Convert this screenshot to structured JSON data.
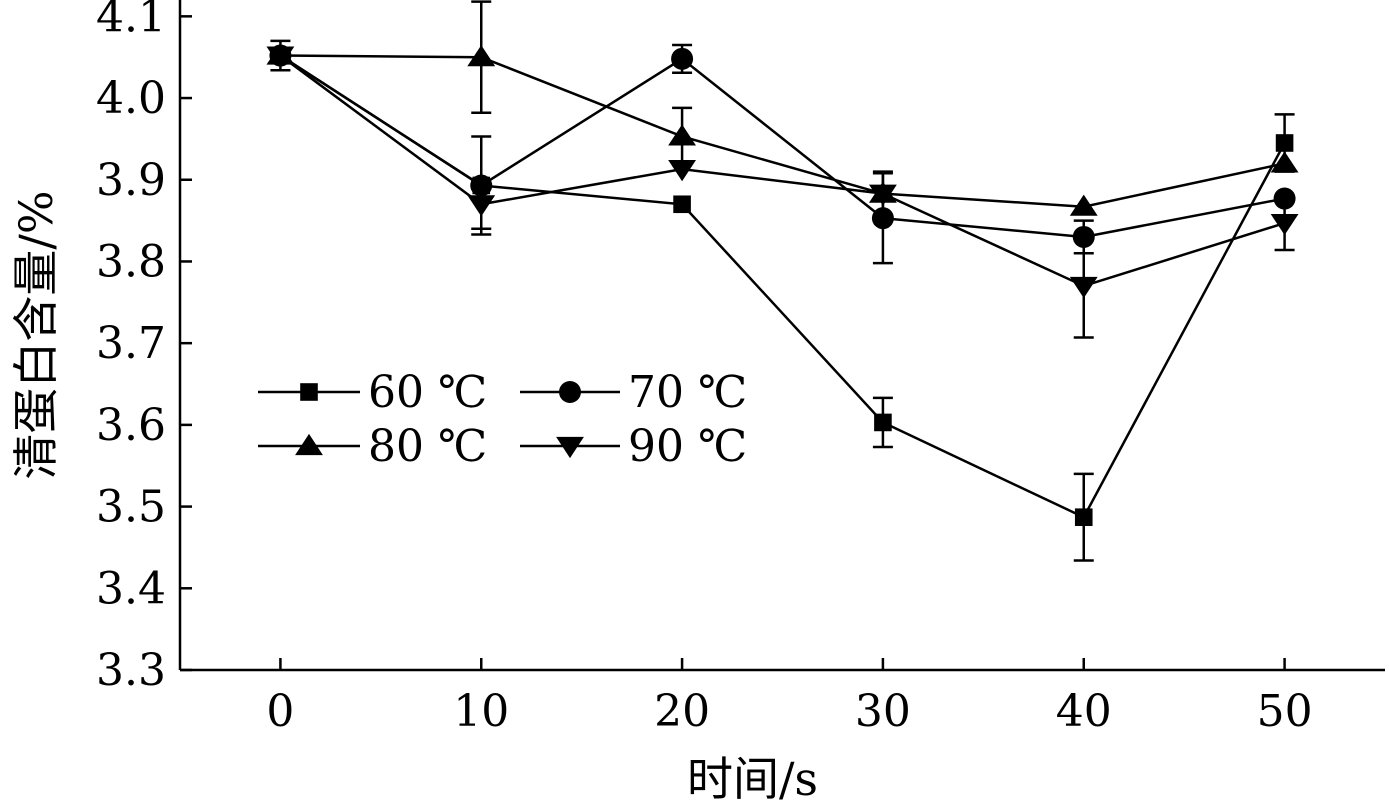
{
  "chart_data": {
    "type": "line",
    "xlabel": "时间/s",
    "ylabel": "清蛋白含量/%",
    "x": [
      0,
      10,
      20,
      30,
      40,
      50
    ],
    "xticks": [
      "0",
      "10",
      "20",
      "30",
      "40",
      "50"
    ],
    "yticks": [
      "3.3",
      "3.4",
      "3.5",
      "3.6",
      "3.7",
      "3.8",
      "3.9",
      "4.0",
      "4.1"
    ],
    "xlim": [
      -5,
      55
    ],
    "ylim": [
      3.3,
      4.12
    ],
    "grid": false,
    "legend_position": "center-left",
    "color": "#000000",
    "series": [
      {
        "name": "60 ℃",
        "marker": "square",
        "values": [
          4.052,
          3.893,
          3.87,
          3.603,
          3.487,
          3.945
        ],
        "errors": [
          0.018,
          0.06,
          0,
          0.03,
          0.053,
          0.035
        ]
      },
      {
        "name": "70 ℃",
        "marker": "circle",
        "values": [
          4.052,
          3.893,
          4.048,
          3.853,
          3.83,
          3.877
        ],
        "errors": [
          0,
          0,
          0.017,
          0.055,
          0.02,
          0
        ]
      },
      {
        "name": "80 ℃",
        "marker": "triangle-up",
        "values": [
          4.052,
          4.05,
          3.953,
          3.883,
          3.867,
          3.92
        ],
        "errors": [
          0,
          0.068,
          0.035,
          0.027,
          0,
          0
        ]
      },
      {
        "name": "90 ℃",
        "marker": "triangle-down",
        "values": [
          4.052,
          3.87,
          3.913,
          3.883,
          3.77,
          3.847
        ],
        "errors": [
          0,
          0.03,
          0,
          0,
          0.063,
          0.033
        ]
      }
    ]
  }
}
